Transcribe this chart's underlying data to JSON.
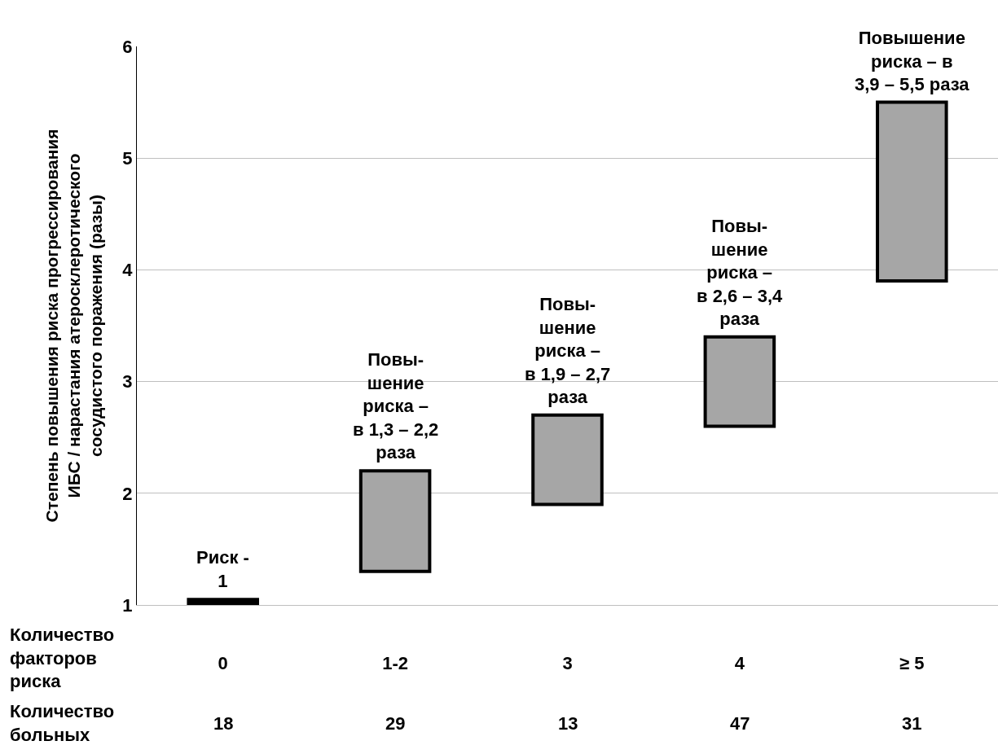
{
  "chart_data": {
    "type": "bar",
    "ylabel": "Степень повышения риска прогрессирования\nИБС / нарастания атеросклеротического\nсосудистого поражения (разы)",
    "categories": [
      "0",
      "1-2",
      "3",
      "4",
      "≥ 5"
    ],
    "base": [
      1,
      1.3,
      1.9,
      2.6,
      3.9
    ],
    "values": [
      0.05,
      0.9,
      0.8,
      0.8,
      1.6
    ],
    "colors": [
      "#000000",
      "#a6a6a6",
      "#a6a6a6",
      "#a6a6a6",
      "#a6a6a6"
    ],
    "ylim": [
      1,
      6
    ],
    "yticks": [
      1,
      2,
      3,
      4,
      5,
      6
    ],
    "grid": "y",
    "annotations": [
      {
        "text": "Риск -\n1",
        "x": "0",
        "y": 1.05
      },
      {
        "text": "Повы-\nшение\nриска –\nв 1,3 – 2,2\nраза",
        "x": "1-2",
        "y": 2.2
      },
      {
        "text": "Повы-\nшение\nриска –\nв 1,9 – 2,7\nраза",
        "x": "3",
        "y": 2.7
      },
      {
        "text": "Повы-\nшение\nриска –\nв 2,6 – 3,4\nраза",
        "x": "4",
        "y": 3.4
      },
      {
        "text": "Повышение\nриска – в\n3,9 – 5,5 раза",
        "x": "≥ 5",
        "y": 5.5
      },
      "Количество\nфакторов\nриска",
      "Количество\nбольных",
      "18",
      "29",
      "13",
      "47",
      "31"
    ]
  }
}
